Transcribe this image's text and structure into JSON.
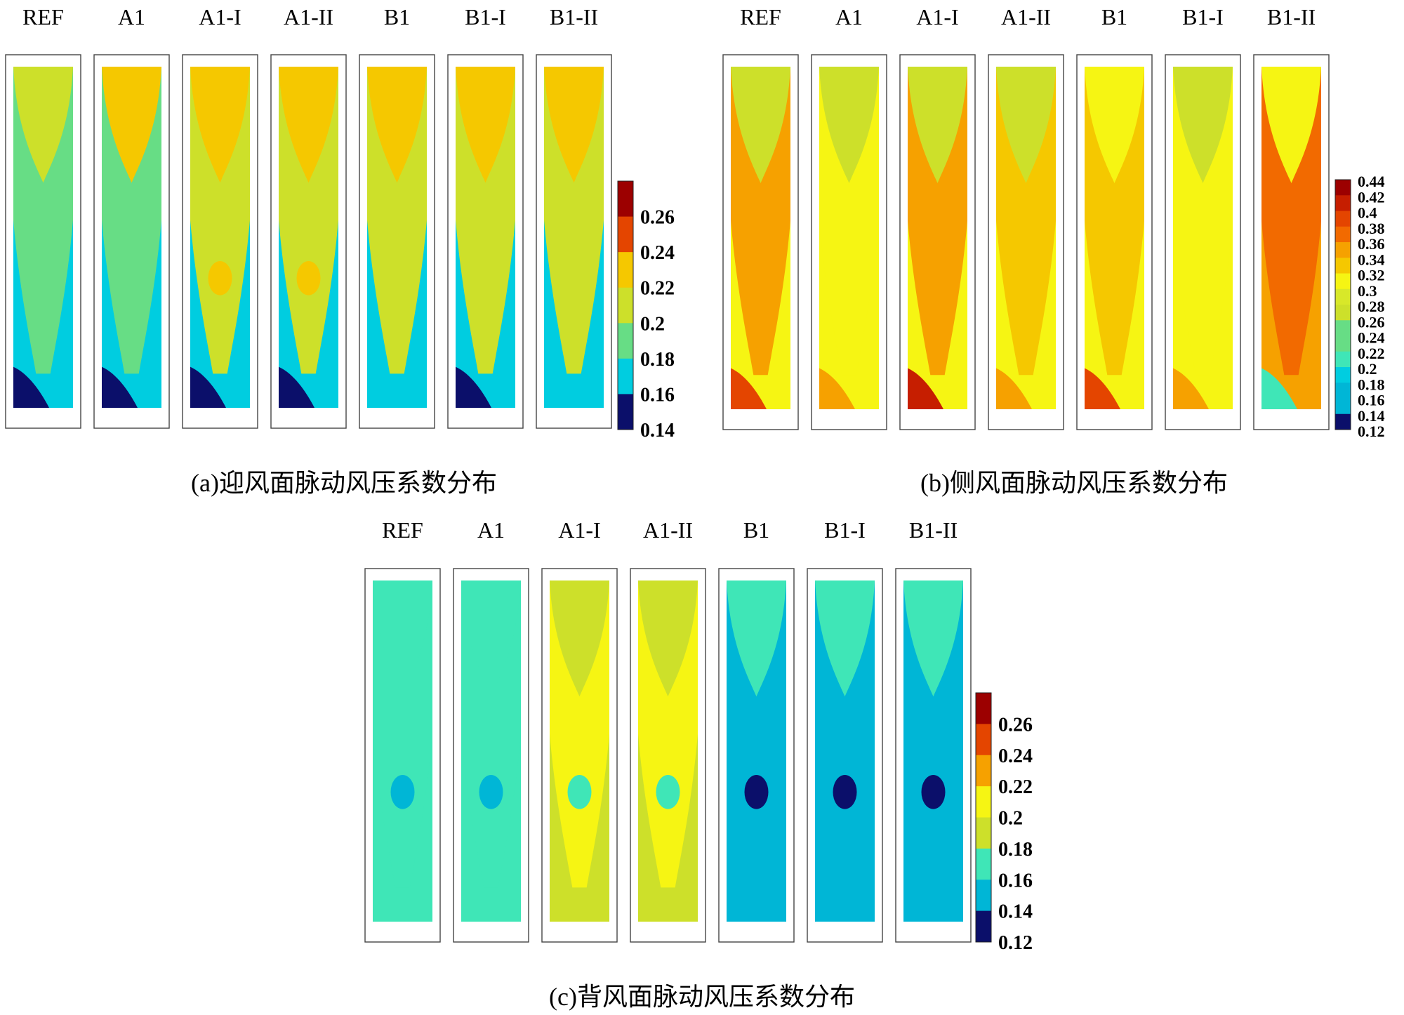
{
  "colors": {
    "navy": "#0b0f6a",
    "cyan": "#00cde0",
    "blue_mid": "#00b6d6",
    "mint": "#3fe6b7",
    "green": "#67dd85",
    "lime": "#cde02a",
    "yellow_green": "#d8e829",
    "yellow": "#f6f513",
    "amber": "#f5c800",
    "orange": "#f6a100",
    "orange_red": "#f26a00",
    "red_orange": "#e44500",
    "red": "#c61e00",
    "dark_red": "#9c0000"
  },
  "chart_data": [
    {
      "id": "windward",
      "type": "heatmap",
      "caption": "(a)迎风面脉动风压系数分布",
      "panels": [
        {
          "label": "REF",
          "top": "lime",
          "mid": "green",
          "bottom": "cyan",
          "corner": "navy",
          "blob": ""
        },
        {
          "label": "A1",
          "top": "amber",
          "mid": "green",
          "bottom": "cyan",
          "corner": "navy",
          "blob": ""
        },
        {
          "label": "A1-I",
          "top": "amber",
          "mid": "lime",
          "bottom": "cyan",
          "corner": "navy",
          "blob": "amber"
        },
        {
          "label": "A1-II",
          "top": "amber",
          "mid": "lime",
          "bottom": "cyan",
          "corner": "navy",
          "blob": "amber"
        },
        {
          "label": "B1",
          "top": "amber",
          "mid": "lime",
          "bottom": "cyan",
          "corner": "",
          "blob": ""
        },
        {
          "label": "B1-I",
          "top": "amber",
          "mid": "lime",
          "bottom": "cyan",
          "corner": "navy",
          "blob": ""
        },
        {
          "label": "B1-II",
          "top": "amber",
          "mid": "lime",
          "bottom": "cyan",
          "corner": "",
          "blob": ""
        }
      ],
      "colorbar": {
        "ticks": [
          "0.26",
          "0.24",
          "0.22",
          "0.2",
          "0.18",
          "0.16",
          "0.14"
        ],
        "colors": [
          "dark_red",
          "red_orange",
          "amber",
          "lime",
          "green",
          "cyan",
          "navy"
        ]
      }
    },
    {
      "id": "side",
      "type": "heatmap",
      "caption": "(b)侧风面脉动风压系数分布",
      "panels": [
        {
          "label": "REF",
          "top": "lime",
          "mid": "orange",
          "bottom": "yellow",
          "corner": "red_orange",
          "blob": ""
        },
        {
          "label": "A1",
          "top": "lime",
          "mid": "yellow",
          "bottom": "yellow",
          "corner": "orange",
          "blob": ""
        },
        {
          "label": "A1-I",
          "top": "lime",
          "mid": "orange",
          "bottom": "yellow",
          "corner": "red",
          "blob": ""
        },
        {
          "label": "A1-II",
          "top": "lime",
          "mid": "amber",
          "bottom": "yellow",
          "corner": "orange",
          "blob": ""
        },
        {
          "label": "B1",
          "top": "yellow",
          "mid": "amber",
          "bottom": "yellow",
          "corner": "red_orange",
          "blob": ""
        },
        {
          "label": "B1-I",
          "top": "lime",
          "mid": "yellow",
          "bottom": "yellow",
          "corner": "orange",
          "blob": ""
        },
        {
          "label": "B1-II",
          "top": "yellow",
          "mid": "orange_red",
          "bottom": "orange",
          "corner": "mint",
          "blob": ""
        }
      ],
      "colorbar": {
        "ticks": [
          "0.44",
          "0.42",
          "0.4",
          "0.38",
          "0.36",
          "0.34",
          "0.32",
          "0.3",
          "0.28",
          "0.26",
          "0.24",
          "0.22",
          "0.2",
          "0.18",
          "0.16",
          "0.14",
          "0.12"
        ],
        "colors": [
          "dark_red",
          "red",
          "red_orange",
          "orange_red",
          "orange",
          "amber",
          "yellow",
          "yellow_green",
          "lime",
          "green",
          "green",
          "mint",
          "cyan",
          "blue_mid",
          "blue_mid",
          "navy"
        ]
      }
    },
    {
      "id": "leeward",
      "type": "heatmap",
      "caption": "(c)背风面脉动风压系数分布",
      "panels": [
        {
          "label": "REF",
          "top": "mint",
          "mid": "mint",
          "bottom": "mint",
          "corner": "",
          "blob": "blue_mid"
        },
        {
          "label": "A1",
          "top": "mint",
          "mid": "mint",
          "bottom": "mint",
          "corner": "",
          "blob": "blue_mid"
        },
        {
          "label": "A1-I",
          "top": "lime",
          "mid": "yellow",
          "bottom": "lime",
          "corner": "",
          "blob": "mint"
        },
        {
          "label": "A1-II",
          "top": "lime",
          "mid": "yellow",
          "bottom": "lime",
          "corner": "",
          "blob": "mint"
        },
        {
          "label": "B1",
          "top": "mint",
          "mid": "blue_mid",
          "bottom": "blue_mid",
          "corner": "",
          "blob": "navy"
        },
        {
          "label": "B1-I",
          "top": "mint",
          "mid": "blue_mid",
          "bottom": "blue_mid",
          "corner": "",
          "blob": "navy"
        },
        {
          "label": "B1-II",
          "top": "mint",
          "mid": "blue_mid",
          "bottom": "blue_mid",
          "corner": "",
          "blob": "navy"
        }
      ],
      "colorbar": {
        "ticks": [
          "0.26",
          "0.24",
          "0.22",
          "0.2",
          "0.18",
          "0.16",
          "0.14",
          "0.12"
        ],
        "colors": [
          "dark_red",
          "red_orange",
          "orange",
          "yellow",
          "lime",
          "mint",
          "blue_mid",
          "navy"
        ]
      }
    }
  ]
}
